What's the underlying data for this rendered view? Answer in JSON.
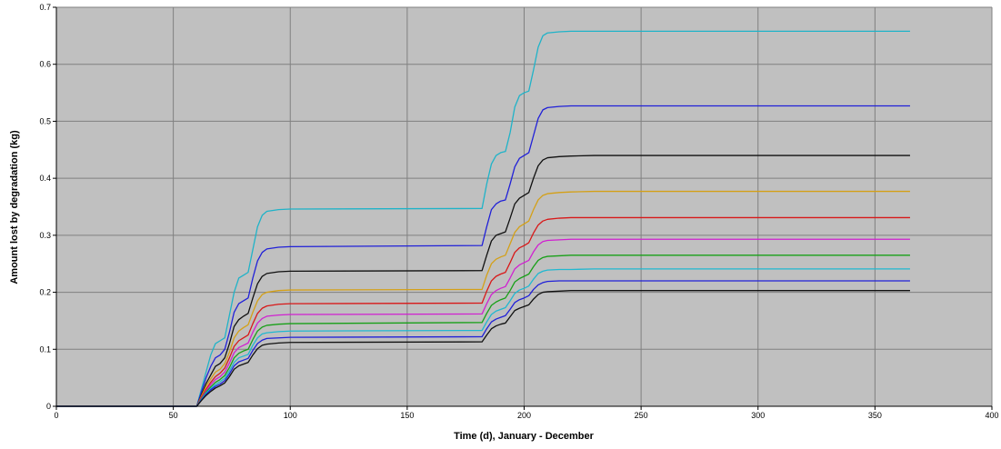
{
  "chart_data": {
    "type": "line",
    "title": "",
    "xlabel": "Time (d), January - December",
    "ylabel": "Amount lost by degradation (kg)",
    "xlim": [
      0,
      400
    ],
    "ylim": [
      0,
      0.7
    ],
    "x_ticks": [
      0,
      50,
      100,
      150,
      200,
      250,
      300,
      350,
      400
    ],
    "y_ticks": [
      0,
      0.1,
      0.2,
      0.3,
      0.4,
      0.5,
      0.6,
      0.7
    ],
    "x_tick_labels": [
      "0",
      "50",
      "100",
      "150",
      "200",
      "250",
      "300",
      "350",
      "400"
    ],
    "y_tick_labels": [
      "0",
      "0.1",
      "0.2",
      "0.3",
      "0.4",
      "0.5",
      "0.6",
      "0.7"
    ],
    "grid": true,
    "legend": "none",
    "background_color": "#c0c0c0",
    "grid_color": "#808080",
    "series": [
      {
        "color": "#1fb3c8",
        "x": [
          0,
          60,
          62,
          64,
          66,
          68,
          70,
          72,
          74,
          76,
          78,
          80,
          82,
          84,
          86,
          88,
          90,
          95,
          100,
          182,
          184,
          186,
          188,
          190,
          192,
          194,
          196,
          198,
          200,
          202,
          204,
          206,
          208,
          210,
          215,
          220,
          230,
          365
        ],
        "y": [
          0,
          0,
          0.03,
          0.06,
          0.09,
          0.11,
          0.115,
          0.12,
          0.16,
          0.2,
          0.225,
          0.23,
          0.235,
          0.275,
          0.315,
          0.335,
          0.342,
          0.345,
          0.346,
          0.347,
          0.39,
          0.425,
          0.44,
          0.445,
          0.447,
          0.48,
          0.525,
          0.545,
          0.55,
          0.553,
          0.59,
          0.63,
          0.65,
          0.655,
          0.657,
          0.658,
          0.658,
          0.658
        ]
      },
      {
        "color": "#2020d8",
        "x": [
          0,
          60,
          62,
          64,
          66,
          68,
          70,
          72,
          74,
          76,
          78,
          80,
          82,
          84,
          86,
          88,
          90,
          95,
          100,
          182,
          184,
          186,
          188,
          190,
          192,
          194,
          196,
          198,
          200,
          202,
          204,
          206,
          208,
          210,
          215,
          220,
          230,
          365
        ],
        "y": [
          0,
          0,
          0.025,
          0.05,
          0.07,
          0.085,
          0.09,
          0.1,
          0.13,
          0.165,
          0.18,
          0.185,
          0.19,
          0.225,
          0.255,
          0.27,
          0.276,
          0.279,
          0.28,
          0.282,
          0.315,
          0.345,
          0.355,
          0.36,
          0.362,
          0.39,
          0.42,
          0.435,
          0.44,
          0.445,
          0.475,
          0.505,
          0.52,
          0.524,
          0.526,
          0.527,
          0.527,
          0.527
        ]
      },
      {
        "color": "#101010",
        "x": [
          0,
          60,
          62,
          64,
          66,
          68,
          70,
          72,
          74,
          76,
          78,
          80,
          82,
          84,
          86,
          88,
          90,
          95,
          100,
          182,
          184,
          186,
          188,
          190,
          192,
          194,
          196,
          198,
          200,
          202,
          204,
          206,
          208,
          210,
          215,
          220,
          230,
          365
        ],
        "y": [
          0,
          0,
          0.02,
          0.04,
          0.055,
          0.07,
          0.075,
          0.085,
          0.11,
          0.14,
          0.152,
          0.158,
          0.163,
          0.19,
          0.215,
          0.228,
          0.233,
          0.236,
          0.237,
          0.238,
          0.265,
          0.29,
          0.3,
          0.303,
          0.306,
          0.33,
          0.355,
          0.365,
          0.37,
          0.375,
          0.4,
          0.422,
          0.432,
          0.436,
          0.438,
          0.439,
          0.44,
          0.44
        ]
      },
      {
        "color": "#d4a017",
        "x": [
          0,
          60,
          62,
          64,
          66,
          68,
          70,
          72,
          74,
          76,
          78,
          80,
          82,
          84,
          86,
          88,
          90,
          95,
          100,
          182,
          184,
          186,
          188,
          190,
          192,
          194,
          196,
          198,
          200,
          202,
          204,
          206,
          208,
          210,
          215,
          220,
          230,
          365
        ],
        "y": [
          0,
          0,
          0.018,
          0.035,
          0.048,
          0.06,
          0.065,
          0.075,
          0.095,
          0.12,
          0.132,
          0.138,
          0.143,
          0.165,
          0.185,
          0.196,
          0.2,
          0.203,
          0.204,
          0.205,
          0.23,
          0.25,
          0.258,
          0.262,
          0.265,
          0.285,
          0.305,
          0.315,
          0.32,
          0.325,
          0.345,
          0.362,
          0.37,
          0.373,
          0.375,
          0.376,
          0.377,
          0.377
        ]
      },
      {
        "color": "#d81818",
        "x": [
          0,
          60,
          62,
          64,
          66,
          68,
          70,
          72,
          74,
          76,
          78,
          80,
          82,
          84,
          86,
          88,
          90,
          95,
          100,
          182,
          184,
          186,
          188,
          190,
          192,
          194,
          196,
          198,
          200,
          202,
          204,
          206,
          208,
          210,
          215,
          220,
          230,
          365
        ],
        "y": [
          0,
          0,
          0.016,
          0.03,
          0.042,
          0.052,
          0.058,
          0.067,
          0.085,
          0.105,
          0.115,
          0.12,
          0.125,
          0.145,
          0.163,
          0.172,
          0.176,
          0.179,
          0.18,
          0.181,
          0.202,
          0.22,
          0.228,
          0.232,
          0.235,
          0.252,
          0.27,
          0.278,
          0.282,
          0.287,
          0.304,
          0.318,
          0.325,
          0.328,
          0.33,
          0.331,
          0.331,
          0.331
        ]
      },
      {
        "color": "#d020d0",
        "x": [
          0,
          60,
          62,
          64,
          66,
          68,
          70,
          72,
          74,
          76,
          78,
          80,
          82,
          84,
          86,
          88,
          90,
          95,
          100,
          182,
          184,
          186,
          188,
          190,
          192,
          194,
          196,
          198,
          200,
          202,
          204,
          206,
          208,
          210,
          215,
          220,
          230,
          365
        ],
        "y": [
          0,
          0,
          0.014,
          0.027,
          0.038,
          0.047,
          0.052,
          0.06,
          0.076,
          0.094,
          0.103,
          0.107,
          0.111,
          0.13,
          0.146,
          0.154,
          0.158,
          0.16,
          0.161,
          0.162,
          0.18,
          0.196,
          0.203,
          0.207,
          0.21,
          0.225,
          0.241,
          0.248,
          0.252,
          0.256,
          0.271,
          0.283,
          0.289,
          0.291,
          0.292,
          0.293,
          0.293,
          0.293
        ]
      },
      {
        "color": "#18a018",
        "x": [
          0,
          60,
          62,
          64,
          66,
          68,
          70,
          72,
          74,
          76,
          78,
          80,
          82,
          84,
          86,
          88,
          90,
          95,
          100,
          182,
          184,
          186,
          188,
          190,
          192,
          194,
          196,
          198,
          200,
          202,
          204,
          206,
          208,
          210,
          215,
          220,
          230,
          365
        ],
        "y": [
          0,
          0,
          0.013,
          0.025,
          0.034,
          0.042,
          0.047,
          0.054,
          0.068,
          0.085,
          0.093,
          0.097,
          0.1,
          0.117,
          0.132,
          0.139,
          0.142,
          0.144,
          0.145,
          0.147,
          0.163,
          0.177,
          0.183,
          0.187,
          0.19,
          0.203,
          0.218,
          0.224,
          0.228,
          0.232,
          0.245,
          0.256,
          0.261,
          0.263,
          0.264,
          0.265,
          0.265,
          0.265
        ]
      },
      {
        "color": "#20b8d0",
        "x": [
          0,
          60,
          62,
          64,
          66,
          68,
          70,
          72,
          74,
          76,
          78,
          80,
          82,
          84,
          86,
          88,
          90,
          95,
          100,
          182,
          184,
          186,
          188,
          190,
          192,
          194,
          196,
          198,
          200,
          202,
          204,
          206,
          208,
          210,
          215,
          220,
          230,
          365
        ],
        "y": [
          0,
          0,
          0.012,
          0.023,
          0.031,
          0.038,
          0.043,
          0.049,
          0.062,
          0.077,
          0.085,
          0.088,
          0.091,
          0.107,
          0.12,
          0.127,
          0.129,
          0.131,
          0.132,
          0.133,
          0.148,
          0.161,
          0.167,
          0.17,
          0.173,
          0.185,
          0.198,
          0.204,
          0.207,
          0.211,
          0.223,
          0.233,
          0.237,
          0.239,
          0.24,
          0.24,
          0.241,
          0.241
        ]
      },
      {
        "color": "#2020d8",
        "x": [
          0,
          60,
          62,
          64,
          66,
          68,
          70,
          72,
          74,
          76,
          78,
          80,
          82,
          84,
          86,
          88,
          90,
          95,
          100,
          182,
          184,
          186,
          188,
          190,
          192,
          194,
          196,
          198,
          200,
          202,
          204,
          206,
          208,
          210,
          215,
          220,
          230,
          365
        ],
        "y": [
          0,
          0,
          0.011,
          0.021,
          0.029,
          0.035,
          0.039,
          0.045,
          0.057,
          0.071,
          0.078,
          0.081,
          0.084,
          0.098,
          0.11,
          0.116,
          0.119,
          0.12,
          0.121,
          0.122,
          0.136,
          0.148,
          0.153,
          0.156,
          0.159,
          0.17,
          0.182,
          0.187,
          0.19,
          0.194,
          0.205,
          0.213,
          0.217,
          0.219,
          0.22,
          0.22,
          0.22,
          0.22
        ]
      },
      {
        "color": "#101010",
        "x": [
          0,
          60,
          62,
          64,
          66,
          68,
          70,
          72,
          74,
          76,
          78,
          80,
          82,
          84,
          86,
          88,
          90,
          95,
          100,
          182,
          184,
          186,
          188,
          190,
          192,
          194,
          196,
          198,
          200,
          202,
          204,
          206,
          208,
          210,
          215,
          220,
          230,
          365
        ],
        "y": [
          0,
          0,
          0.01,
          0.019,
          0.026,
          0.032,
          0.036,
          0.041,
          0.052,
          0.065,
          0.071,
          0.074,
          0.077,
          0.09,
          0.101,
          0.107,
          0.109,
          0.111,
          0.112,
          0.113,
          0.125,
          0.136,
          0.141,
          0.144,
          0.146,
          0.157,
          0.168,
          0.172,
          0.175,
          0.178,
          0.188,
          0.196,
          0.2,
          0.201,
          0.202,
          0.203,
          0.203,
          0.203
        ]
      }
    ]
  }
}
